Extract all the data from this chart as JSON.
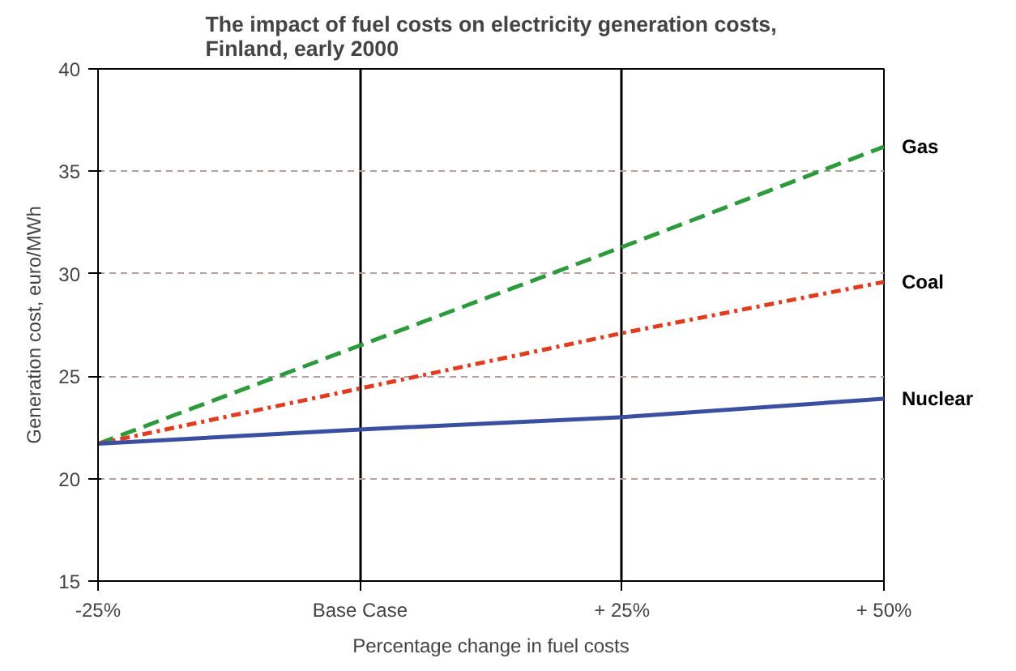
{
  "chart_data": {
    "type": "line",
    "title": "The impact of fuel costs on electricity generation costs,\nFinland, early 2000",
    "xlabel": "Percentage change in fuel costs",
    "ylabel": "Generation cost, euro/MWh",
    "categories": [
      "-25%",
      "Base Case",
      "+ 25%",
      "+ 50%"
    ],
    "series": [
      {
        "name": "Gas",
        "color": "#2e9a3e",
        "line_style": "dashed",
        "values": [
          21.7,
          26.5,
          31.3,
          36.2
        ]
      },
      {
        "name": "Coal",
        "color": "#e03c20",
        "line_style": "dotted",
        "values": [
          21.7,
          24.4,
          27.1,
          29.6
        ]
      },
      {
        "name": "Nuclear",
        "color": "#3a4fa0",
        "line_style": "solid",
        "values": [
          21.7,
          22.4,
          23.0,
          23.9
        ]
      }
    ],
    "ylim": [
      15,
      40
    ],
    "yticks": [
      15,
      20,
      25,
      30,
      35,
      40
    ],
    "grid": true,
    "legend": false
  }
}
